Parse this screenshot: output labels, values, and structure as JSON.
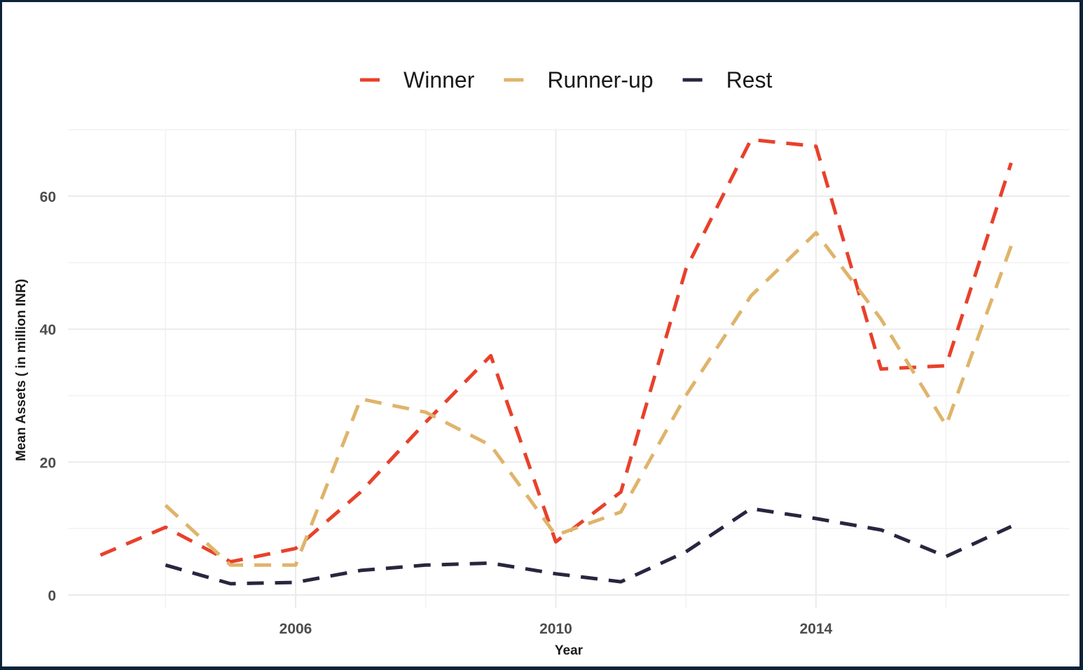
{
  "chart_data": {
    "type": "line",
    "title": "",
    "xlabel": "Year",
    "ylabel": "Mean Assets ( in million INR)",
    "xlim": [
      2002.5,
      2017.9
    ],
    "ylim": [
      -2,
      70
    ],
    "x_ticks": [
      2006,
      2010,
      2014
    ],
    "x_tick_labels": [
      "2006",
      "2010",
      "2014"
    ],
    "x_minor_ticks": [
      2004,
      2008,
      2012,
      2016
    ],
    "y_ticks": [
      0,
      20,
      40,
      60
    ],
    "y_tick_labels": [
      "0",
      "20",
      "40",
      "60"
    ],
    "y_minor_ticks": [
      10,
      30,
      50,
      70
    ],
    "grid": true,
    "legend_position": "top",
    "series": [
      {
        "name": "Winner",
        "color": "#e8412b",
        "x": [
          2003,
          2004,
          2005,
          2006,
          2007,
          2008,
          2009,
          2010,
          2011,
          2012,
          2013,
          2014,
          2015,
          2016,
          2017
        ],
        "y": [
          6,
          10.2,
          5,
          7,
          15.5,
          26,
          36,
          8,
          15.5,
          49,
          68.5,
          67.5,
          34,
          34.5,
          65
        ]
      },
      {
        "name": "Runner-up",
        "color": "#dfb46b",
        "x": [
          2004,
          2005,
          2006,
          2007,
          2008,
          2009,
          2010,
          2011,
          2012,
          2013,
          2014,
          2015,
          2016,
          2017
        ],
        "y": [
          13.5,
          4.5,
          4.5,
          29.5,
          27.5,
          22.5,
          9,
          12.5,
          30,
          45,
          54.5,
          41.5,
          25.5,
          52.5
        ]
      },
      {
        "name": "Rest",
        "color": "#28263f",
        "x": [
          2004,
          2005,
          2006,
          2007,
          2008,
          2009,
          2010,
          2011,
          2012,
          2013,
          2014,
          2015,
          2016,
          2017
        ],
        "y": [
          4.5,
          1.7,
          1.9,
          3.7,
          4.5,
          4.8,
          3.2,
          2,
          6.5,
          13,
          11.5,
          9.8,
          5.8,
          10.3
        ]
      }
    ]
  }
}
